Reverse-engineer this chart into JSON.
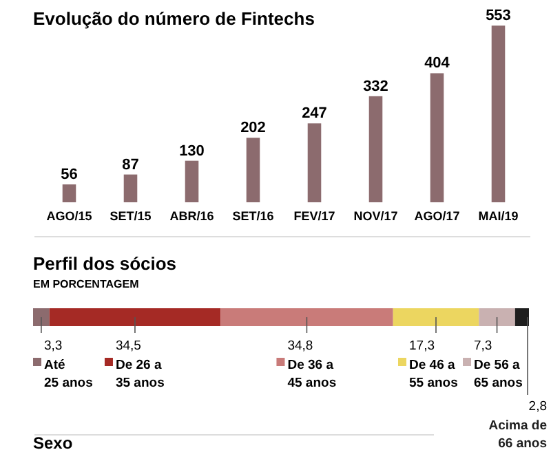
{
  "chart_data": [
    {
      "type": "bar",
      "title": "Evolução do número de Fintechs",
      "categories": [
        "AGO/15",
        "SET/15",
        "ABR/16",
        "SET/16",
        "FEV/17",
        "NOV/17",
        "AGO/17",
        "MAI/19"
      ],
      "values": [
        56,
        87,
        130,
        202,
        247,
        332,
        404,
        553
      ],
      "color": "#8c6b6e",
      "data_labels": true,
      "ylim": [
        0,
        560
      ],
      "tick_labels": "x"
    },
    {
      "type": "bar",
      "orientation": "horizontal",
      "stacked": true,
      "title": "Perfil dos sócios",
      "subtitle": "EM PORCENTAGEM",
      "categories": [
        null
      ],
      "xlim": [
        0,
        100
      ],
      "tick_labels": false,
      "legend": "bottom",
      "annotations": [
        "Sexo"
      ],
      "series": [
        {
          "name": "Até\n25 anos",
          "color": "#8c6b6e",
          "values": [
            3.3
          ],
          "value_labels": [
            "3,3"
          ]
        },
        {
          "name": "De 26 a\n35 anos",
          "color": "#a52a25",
          "values": [
            34.5
          ],
          "value_labels": [
            "34,5"
          ]
        },
        {
          "name": "De 36 a\n45 anos",
          "color": "#c97b79",
          "values": [
            34.8
          ],
          "value_labels": [
            "34,8"
          ]
        },
        {
          "name": "De 46 a\n55 anos",
          "color": "#ecd660",
          "values": [
            17.3
          ],
          "value_labels": [
            "17,3"
          ]
        },
        {
          "name": "De 56 a\n65 anos",
          "color": "#c9b1b1",
          "values": [
            7.3
          ],
          "value_labels": [
            "7,3"
          ]
        },
        {
          "name": "Acima de\n66 anos",
          "color": "#1e1e1e",
          "values": [
            2.8
          ],
          "value_labels": [
            "2,8"
          ]
        }
      ]
    }
  ]
}
